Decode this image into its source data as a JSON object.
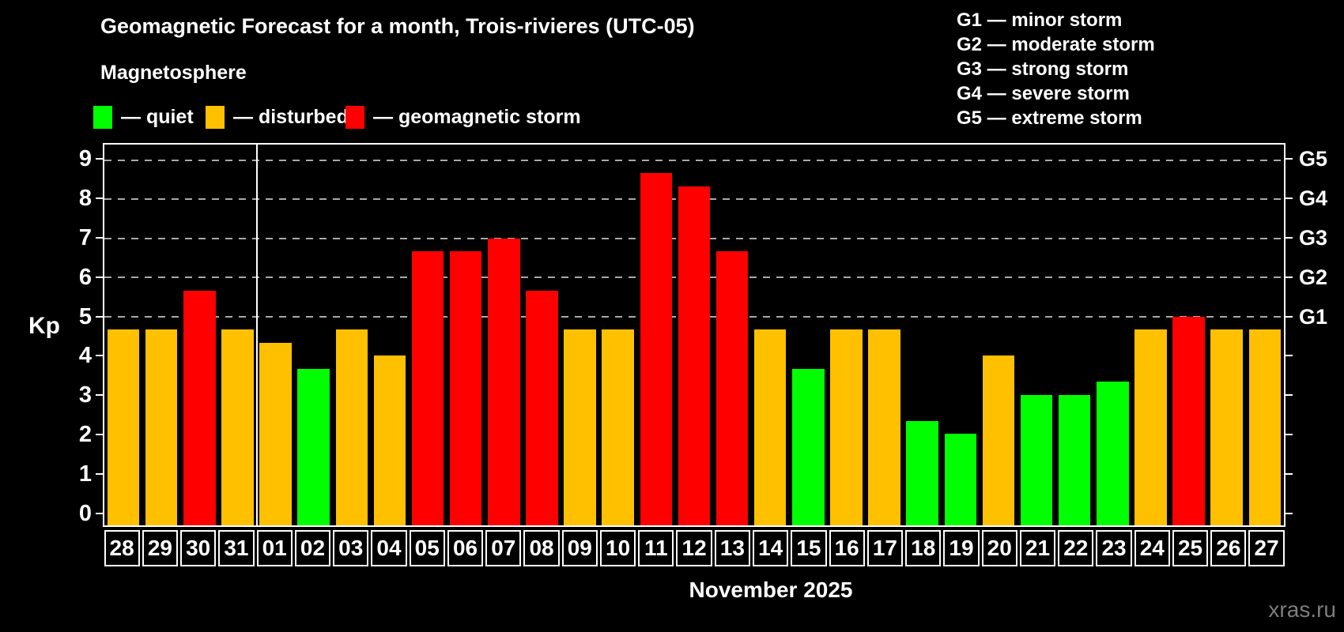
{
  "header": {
    "title": "Geomagnetic Forecast for a month, Trois-rivieres (UTC-05)",
    "subtitle": "Magnetosphere"
  },
  "magnetosphere_legend": [
    {
      "key": "quiet",
      "label": "— quiet",
      "color": "#00ff00"
    },
    {
      "key": "disturbed",
      "label": "— disturbed",
      "color": "#ffc000"
    },
    {
      "key": "storm",
      "label": "— geomagnetic storm",
      "color": "#ff0000"
    }
  ],
  "g_scale_legend": [
    "G1 — minor storm",
    "G2 — moderate storm",
    "G3 — strong storm",
    "G4 — severe storm",
    "G5 — extreme storm"
  ],
  "chart_data": {
    "type": "bar",
    "title": "Geomagnetic Forecast for a month, Trois-rivieres (UTC-05)",
    "ylabel": "Kp",
    "xlabel": "November 2025",
    "ylim": [
      0,
      9
    ],
    "display_range": [
      -0.34,
      9.4
    ],
    "grid": "dashed horizontal lines at Kp 5-9",
    "gridline_values": [
      5,
      6,
      7,
      8,
      9
    ],
    "left_ticks": [
      0,
      1,
      2,
      3,
      4,
      5,
      6,
      7,
      8,
      9
    ],
    "right_ticks": [
      0,
      1,
      2,
      3,
      4,
      5,
      6,
      7,
      8,
      9
    ],
    "right_axis_labels": [
      {
        "label": "G1",
        "value": 5
      },
      {
        "label": "G2",
        "value": 6
      },
      {
        "label": "G3",
        "value": 7
      },
      {
        "label": "G4",
        "value": 8
      },
      {
        "label": "G5",
        "value": 9
      }
    ],
    "month_separator_after_index": 3,
    "colors": {
      "quiet": "#00ff00",
      "disturbed": "#ffc000",
      "storm": "#ff0000"
    },
    "categories": [
      "28",
      "29",
      "30",
      "31",
      "01",
      "02",
      "03",
      "04",
      "05",
      "06",
      "07",
      "08",
      "09",
      "10",
      "11",
      "12",
      "13",
      "14",
      "15",
      "16",
      "17",
      "18",
      "19",
      "20",
      "21",
      "22",
      "23",
      "24",
      "25",
      "26",
      "27"
    ],
    "values": [
      4.67,
      4.67,
      5.67,
      4.67,
      4.33,
      3.67,
      4.67,
      4.0,
      6.67,
      6.67,
      7.0,
      5.67,
      4.67,
      4.67,
      8.67,
      8.33,
      6.67,
      4.67,
      3.67,
      4.67,
      4.67,
      2.33,
      2.0,
      4.0,
      3.0,
      3.0,
      3.33,
      4.67,
      5.0,
      4.67,
      4.67
    ],
    "states": [
      "disturbed",
      "disturbed",
      "storm",
      "disturbed",
      "disturbed",
      "quiet",
      "disturbed",
      "disturbed",
      "storm",
      "storm",
      "storm",
      "storm",
      "disturbed",
      "disturbed",
      "storm",
      "storm",
      "storm",
      "disturbed",
      "quiet",
      "disturbed",
      "disturbed",
      "quiet",
      "quiet",
      "disturbed",
      "quiet",
      "quiet",
      "quiet",
      "disturbed",
      "storm",
      "disturbed",
      "disturbed"
    ]
  },
  "footer": {
    "xaxis_label": "November 2025",
    "watermark": "xras.ru"
  }
}
